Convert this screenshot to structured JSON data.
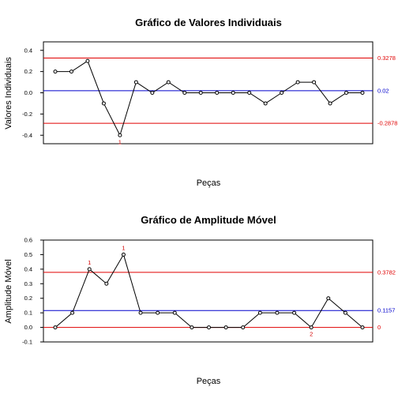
{
  "colors": {
    "limit": "#e00000",
    "center": "#0000cc",
    "violation": "#d40000",
    "line": "#000000"
  },
  "chart_data": [
    {
      "type": "line",
      "title": "Gráfico de Valores Individuais",
      "xlabel": "Peças",
      "ylabel": "Valores Individuais",
      "ylim": [
        -0.48,
        0.48
      ],
      "yticks": [
        -0.4,
        -0.2,
        0.0,
        0.2,
        0.4
      ],
      "ytick_labels": [
        "-0.4",
        "-0.2",
        "0.0",
        "0.2",
        "0.4"
      ],
      "grid": false,
      "values": [
        0.2,
        0.2,
        0.3,
        -0.1,
        -0.4,
        0.1,
        0.0,
        0.1,
        0.0,
        0.0,
        0.0,
        0.0,
        0.0,
        -0.1,
        0.0,
        0.1,
        0.1,
        -0.1,
        0.0,
        0.0
      ],
      "ucl": {
        "value": 0.3278,
        "label": "0.3278"
      },
      "cl": {
        "value": 0.02,
        "label": "0.02"
      },
      "lcl": {
        "value": -0.2878,
        "label": "-0.2878"
      },
      "violations": [
        {
          "index": 4,
          "label": "1"
        }
      ]
    },
    {
      "type": "line",
      "title": "Gráfico de Amplitude Móvel",
      "xlabel": "Peças",
      "ylabel": "Amplitude Móvel",
      "ylim": [
        -0.1,
        0.6
      ],
      "yticks": [
        -0.1,
        0.0,
        0.1,
        0.2,
        0.3,
        0.4,
        0.5,
        0.6
      ],
      "ytick_labels": [
        "-0.1",
        "0.0",
        "0.1",
        "0.2",
        "0.3",
        "0.4",
        "0.5",
        "0.6"
      ],
      "grid": false,
      "values": [
        0.0,
        0.1,
        0.4,
        0.3,
        0.5,
        0.1,
        0.1,
        0.1,
        0.0,
        0.0,
        0.0,
        0.0,
        0.1,
        0.1,
        0.1,
        0.0,
        0.2,
        0.1,
        0.0
      ],
      "ucl": {
        "value": 0.3782,
        "label": "0.3782"
      },
      "cl": {
        "value": 0.1157,
        "label": "0.1157"
      },
      "lcl": {
        "value": 0.0,
        "label": "0"
      },
      "violations": [
        {
          "index": 2,
          "label": "1"
        },
        {
          "index": 4,
          "label": "1"
        },
        {
          "index": 15,
          "label": "2"
        }
      ]
    }
  ]
}
